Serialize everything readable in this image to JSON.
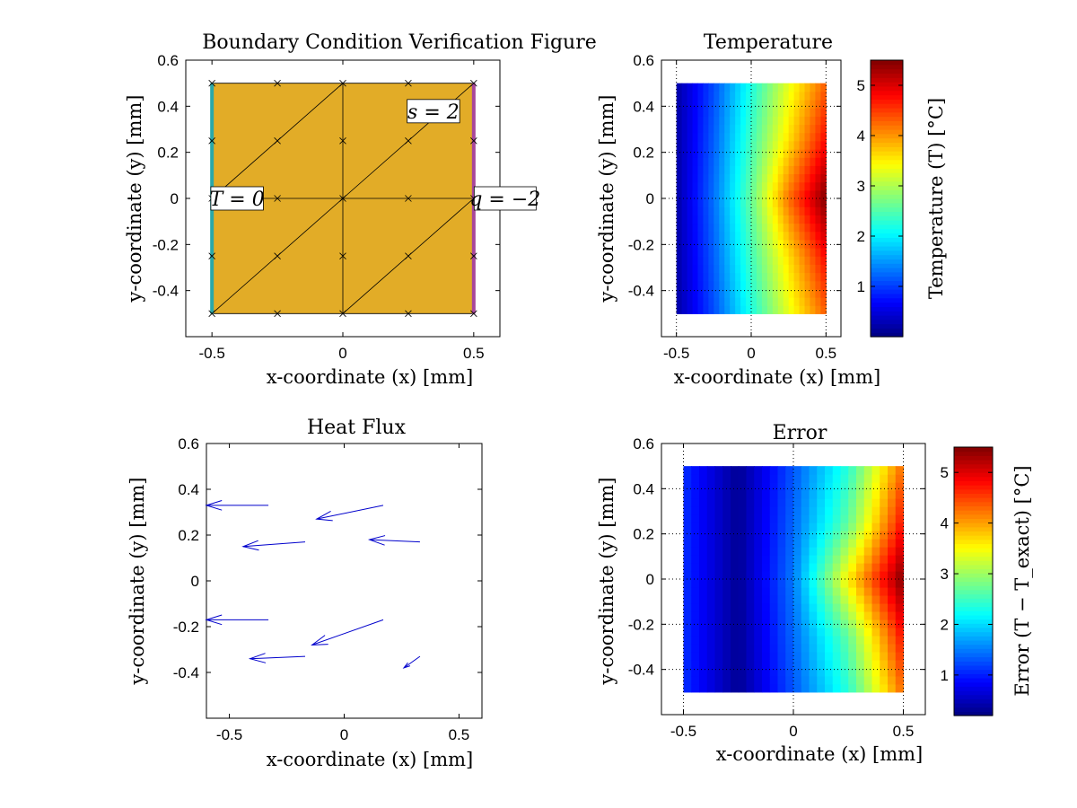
{
  "figure": {
    "background": "#ffffff"
  },
  "chart_data": [
    {
      "id": "bc",
      "type": "mesh",
      "title": "Boundary Condition Verification Figure",
      "xlabel": "x-coordinate (x) [mm]",
      "ylabel": "y-coordinate (y) [mm]",
      "xlim": [
        -0.6,
        0.6
      ],
      "ylim": [
        -0.6,
        0.6
      ],
      "xticks": [
        -0.5,
        0,
        0.5
      ],
      "yticks": [
        -0.4,
        -0.2,
        0,
        0.2,
        0.4,
        0.6
      ],
      "fill_color": "#E2AC27",
      "domain": {
        "xmin": -0.5,
        "xmax": 0.5,
        "ymin": -0.5,
        "ymax": 0.5
      },
      "element_lines": [
        [
          [
            -0.5,
            -0.5
          ],
          [
            0.5,
            -0.5
          ]
        ],
        [
          [
            -0.5,
            0
          ],
          [
            0.5,
            0
          ]
        ],
        [
          [
            -0.5,
            0.5
          ],
          [
            0.5,
            0.5
          ]
        ],
        [
          [
            -0.5,
            -0.5
          ],
          [
            -0.5,
            0.5
          ]
        ],
        [
          [
            0,
            -0.5
          ],
          [
            0,
            0.5
          ]
        ],
        [
          [
            0.5,
            -0.5
          ],
          [
            0.5,
            0.5
          ]
        ],
        [
          [
            -0.5,
            -0.5
          ],
          [
            0,
            0
          ]
        ],
        [
          [
            0,
            -0.5
          ],
          [
            0.5,
            0
          ]
        ],
        [
          [
            -0.5,
            0
          ],
          [
            0,
            0.5
          ]
        ],
        [
          [
            0,
            0
          ],
          [
            0.5,
            0.5
          ]
        ]
      ],
      "nodes_x": [
        -0.5,
        -0.25,
        0,
        0.25,
        0.5
      ],
      "nodes_y": [
        -0.5,
        -0.25,
        0,
        0.25,
        0.5
      ],
      "boundaries": [
        {
          "edge": "left",
          "color": "#2AA8A8",
          "label": "T = 0",
          "label_at": [
            -0.5,
            0
          ]
        },
        {
          "edge": "right",
          "color": "#A8479A",
          "label": "q = −2",
          "label_at": [
            0.5,
            0
          ]
        }
      ],
      "source_label": {
        "text": "s = 2",
        "at": [
          0.25,
          0.25
        ]
      }
    },
    {
      "id": "temp",
      "type": "heatmap",
      "title": "Temperature",
      "xlabel": "x-coordinate (x) [mm]",
      "ylabel": "y-coordinate (y) [mm]",
      "xlim": [
        -0.6,
        0.6
      ],
      "ylim": [
        -0.6,
        0.6
      ],
      "xticks": [
        -0.5,
        0,
        0.5
      ],
      "yticks": [
        -0.4,
        -0.2,
        0,
        0.2,
        0.4,
        0.6
      ],
      "grid": "dotted",
      "domain": {
        "xmin": -0.5,
        "xmax": 0.5,
        "ymin": -0.5,
        "ymax": 0.5
      },
      "colormap": "jet",
      "color_range": [
        0,
        5.5
      ],
      "colorbar_label": "Temperature (T) [°C]",
      "colorbar_ticks": [
        1,
        2,
        3,
        4,
        5
      ],
      "x": [
        -0.5,
        -0.25,
        0,
        0.25,
        0.5
      ],
      "y": [
        -0.5,
        -0.25,
        0,
        0.25,
        0.5
      ],
      "z": [
        [
          0.2,
          1.1,
          2.2,
          3.3,
          4.3
        ],
        [
          0.2,
          1.2,
          2.4,
          3.6,
          4.8
        ],
        [
          0.2,
          1.3,
          2.6,
          4.2,
          5.5
        ],
        [
          0.2,
          1.2,
          2.4,
          3.6,
          4.8
        ],
        [
          0.2,
          1.1,
          2.2,
          3.3,
          4.3
        ]
      ]
    },
    {
      "id": "flux",
      "type": "quiver",
      "title": "Heat Flux",
      "xlabel": "x-coordinate (x) [mm]",
      "ylabel": "y-coordinate (y) [mm]",
      "xlim": [
        -0.6,
        0.6
      ],
      "ylim": [
        -0.6,
        0.6
      ],
      "xticks": [
        -0.5,
        0,
        0.5
      ],
      "yticks": [
        -0.4,
        -0.2,
        0,
        0.2,
        0.4,
        0.6
      ],
      "arrow_color": "#0000CC",
      "arrows": [
        {
          "x": -0.33,
          "y": 0.33,
          "u": -0.27,
          "v": 0.0
        },
        {
          "x": 0.17,
          "y": 0.33,
          "u": -0.29,
          "v": -0.06
        },
        {
          "x": -0.17,
          "y": 0.17,
          "u": -0.27,
          "v": -0.02
        },
        {
          "x": 0.33,
          "y": 0.17,
          "u": -0.22,
          "v": 0.01
        },
        {
          "x": -0.33,
          "y": -0.17,
          "u": -0.27,
          "v": 0.0
        },
        {
          "x": 0.17,
          "y": -0.17,
          "u": -0.31,
          "v": -0.11
        },
        {
          "x": -0.17,
          "y": -0.33,
          "u": -0.24,
          "v": -0.01
        },
        {
          "x": 0.33,
          "y": -0.33,
          "u": -0.07,
          "v": -0.05
        }
      ]
    },
    {
      "id": "err",
      "type": "heatmap",
      "title": "Error",
      "xlabel": "x-coordinate (x) [mm]",
      "ylabel": "y-coordinate (y) [mm]",
      "xlim": [
        -0.6,
        0.6
      ],
      "ylim": [
        -0.6,
        0.6
      ],
      "xticks": [
        -0.5,
        0,
        0.5
      ],
      "yticks": [
        -0.4,
        -0.2,
        0,
        0.2,
        0.4,
        0.6
      ],
      "grid": "dotted",
      "domain": {
        "xmin": -0.5,
        "xmax": 0.5,
        "ymin": -0.5,
        "ymax": 0.5
      },
      "colormap": "jet",
      "color_range": [
        0.2,
        5.5
      ],
      "colorbar_label": "Error (T − T_exact) [°C]",
      "colorbar_ticks": [
        1,
        2,
        3,
        4,
        5
      ],
      "x": [
        -0.5,
        -0.25,
        0,
        0.25,
        0.5
      ],
      "y": [
        -0.5,
        -0.25,
        0,
        0.25,
        0.5
      ],
      "z": [
        [
          1.1,
          0.3,
          1.3,
          2.4,
          4.3
        ],
        [
          1.1,
          0.3,
          1.4,
          2.7,
          4.8
        ],
        [
          1.1,
          0.3,
          1.5,
          3.6,
          5.5
        ],
        [
          1.1,
          0.3,
          1.4,
          2.7,
          4.8
        ],
        [
          1.1,
          0.3,
          1.3,
          2.4,
          4.3
        ]
      ]
    }
  ]
}
